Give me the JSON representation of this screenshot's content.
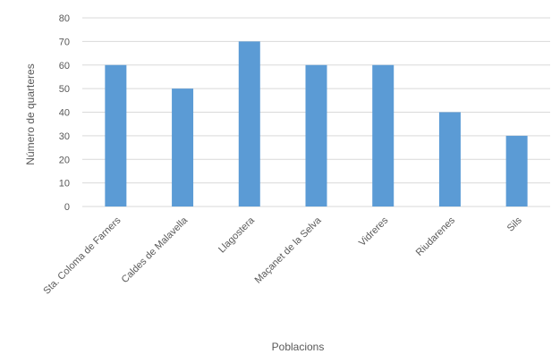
{
  "chart_data": {
    "type": "bar",
    "title": "",
    "xlabel": "Poblacions",
    "ylabel": "Número de quarteres",
    "ylim": [
      0,
      80
    ],
    "yticks": [
      0,
      10,
      20,
      30,
      40,
      50,
      60,
      70,
      80
    ],
    "grid": true,
    "legend": "none",
    "categories": [
      "Sta. Coloma de Farners",
      "Caldes de Malavella",
      "Llagostera",
      "Maçanet de la Selva",
      "Vidreres",
      "Riudarenes",
      "Sils"
    ],
    "series": [
      {
        "values": [
          60,
          50,
          70,
          60,
          60,
          40,
          30
        ],
        "color": "#5b9bd5"
      }
    ]
  }
}
